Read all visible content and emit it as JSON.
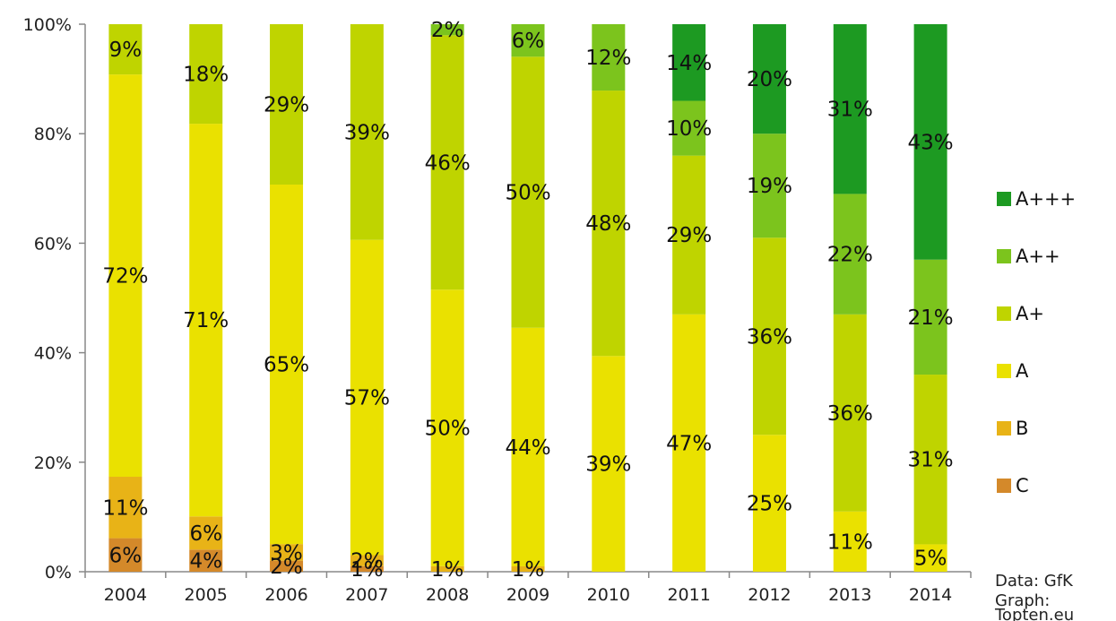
{
  "chart_data": {
    "type": "bar",
    "stacked": true,
    "categories": [
      "2004",
      "2005",
      "2006",
      "2007",
      "2008",
      "2009",
      "2010",
      "2011",
      "2012",
      "2013",
      "2014"
    ],
    "series": [
      {
        "name": "C",
        "color": "#d4892a",
        "values": [
          6,
          4,
          2,
          1,
          0,
          0,
          0,
          0,
          0,
          0,
          0
        ]
      },
      {
        "name": "B",
        "color": "#e8b317",
        "values": [
          11,
          6,
          3,
          2,
          1,
          1,
          0,
          0,
          0,
          0,
          0
        ]
      },
      {
        "name": "A",
        "color": "#eae100",
        "values": [
          72,
          71,
          65,
          57,
          50,
          44,
          39,
          47,
          25,
          11,
          5
        ]
      },
      {
        "name": "A+",
        "color": "#bfd400",
        "values": [
          9,
          18,
          29,
          39,
          46,
          50,
          48,
          29,
          36,
          36,
          31
        ]
      },
      {
        "name": "A++",
        "color": "#7cc41d",
        "values": [
          0,
          0,
          0,
          0,
          2,
          6,
          12,
          10,
          19,
          22,
          21
        ]
      },
      {
        "name": "A+++",
        "color": "#1d9a22",
        "values": [
          0,
          0,
          0,
          0,
          0,
          0,
          0,
          14,
          20,
          31,
          43
        ]
      }
    ],
    "labels": [
      {
        "year": "2004",
        "series": "C",
        "text": "6%"
      },
      {
        "year": "2004",
        "series": "B",
        "text": "11%"
      },
      {
        "year": "2004",
        "series": "A",
        "text": "72%"
      },
      {
        "year": "2004",
        "series": "A+",
        "text": "9%"
      },
      {
        "year": "2005",
        "series": "C",
        "text": "4%"
      },
      {
        "year": "2005",
        "series": "B",
        "text": "6%"
      },
      {
        "year": "2005",
        "series": "A",
        "text": "71%"
      },
      {
        "year": "2005",
        "series": "A+",
        "text": "18%"
      },
      {
        "year": "2006",
        "series": "C",
        "text": "2%"
      },
      {
        "year": "2006",
        "series": "B",
        "text": "3%"
      },
      {
        "year": "2006",
        "series": "A",
        "text": "65%"
      },
      {
        "year": "2006",
        "series": "A+",
        "text": "29%"
      },
      {
        "year": "2007",
        "series": "C",
        "text": "1%"
      },
      {
        "year": "2007",
        "series": "B",
        "text": "2%"
      },
      {
        "year": "2007",
        "series": "A",
        "text": "57%"
      },
      {
        "year": "2007",
        "series": "A+",
        "text": "39%"
      },
      {
        "year": "2008",
        "series": "B",
        "text": "1%"
      },
      {
        "year": "2008",
        "series": "A",
        "text": "50%"
      },
      {
        "year": "2008",
        "series": "A+",
        "text": "46%"
      },
      {
        "year": "2008",
        "series": "A++",
        "text": "2%"
      },
      {
        "year": "2009",
        "series": "B",
        "text": "1%"
      },
      {
        "year": "2009",
        "series": "A",
        "text": "44%"
      },
      {
        "year": "2009",
        "series": "A+",
        "text": "50%"
      },
      {
        "year": "2009",
        "series": "A++",
        "text": "6%"
      },
      {
        "year": "2010",
        "series": "A",
        "text": "39%"
      },
      {
        "year": "2010",
        "series": "A+",
        "text": "48%"
      },
      {
        "year": "2010",
        "series": "A++",
        "text": "12%"
      },
      {
        "year": "2011",
        "series": "A",
        "text": "47%"
      },
      {
        "year": "2011",
        "series": "A+",
        "text": "29%"
      },
      {
        "year": "2011",
        "series": "A++",
        "text": "10%"
      },
      {
        "year": "2011",
        "series": "A+++",
        "text": "14%"
      },
      {
        "year": "2012",
        "series": "A",
        "text": "25%"
      },
      {
        "year": "2012",
        "series": "A+",
        "text": "36%"
      },
      {
        "year": "2012",
        "series": "A++",
        "text": "19%"
      },
      {
        "year": "2012",
        "series": "A+++",
        "text": "20%"
      },
      {
        "year": "2013",
        "series": "A",
        "text": "11%"
      },
      {
        "year": "2013",
        "series": "A+",
        "text": "36%"
      },
      {
        "year": "2013",
        "series": "A++",
        "text": "22%"
      },
      {
        "year": "2013",
        "series": "A+++",
        "text": "31%"
      },
      {
        "year": "2014",
        "series": "A",
        "text": "5%"
      },
      {
        "year": "2014",
        "series": "A+",
        "text": "31%"
      },
      {
        "year": "2014",
        "series": "A++",
        "text": "21%"
      },
      {
        "year": "2014",
        "series": "A+++",
        "text": "43%"
      }
    ],
    "y_ticks": [
      "0%",
      "20%",
      "40%",
      "60%",
      "80%",
      "100%"
    ],
    "ylim": [
      0,
      100
    ],
    "grid": false,
    "legend": {
      "placement": "right",
      "order": [
        "A+++",
        "A++",
        "A+",
        "A",
        "B",
        "C"
      ]
    },
    "credit": [
      "Data: GfK",
      "Graph:",
      "Topten.eu"
    ]
  }
}
